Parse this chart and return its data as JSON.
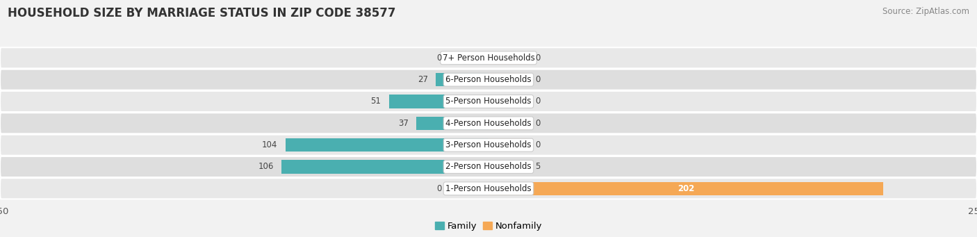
{
  "title": "HOUSEHOLD SIZE BY MARRIAGE STATUS IN ZIP CODE 38577",
  "source": "Source: ZipAtlas.com",
  "categories": [
    "7+ Person Households",
    "6-Person Households",
    "5-Person Households",
    "4-Person Households",
    "3-Person Households",
    "2-Person Households",
    "1-Person Households"
  ],
  "family_values": [
    0,
    27,
    51,
    37,
    104,
    106,
    0
  ],
  "nonfamily_values": [
    0,
    0,
    0,
    0,
    0,
    5,
    202
  ],
  "family_color": "#4AAFB0",
  "nonfamily_color": "#F5A855",
  "xlim": 250,
  "bar_height": 0.62,
  "bg_color": "#f2f2f2",
  "row_bg_even": "#e8e8e8",
  "row_bg_odd": "#dedede",
  "title_fontsize": 12,
  "source_fontsize": 8.5,
  "tick_fontsize": 9.5,
  "legend_fontsize": 9.5,
  "label_fontsize": 8.5,
  "value_fontsize": 8.5
}
